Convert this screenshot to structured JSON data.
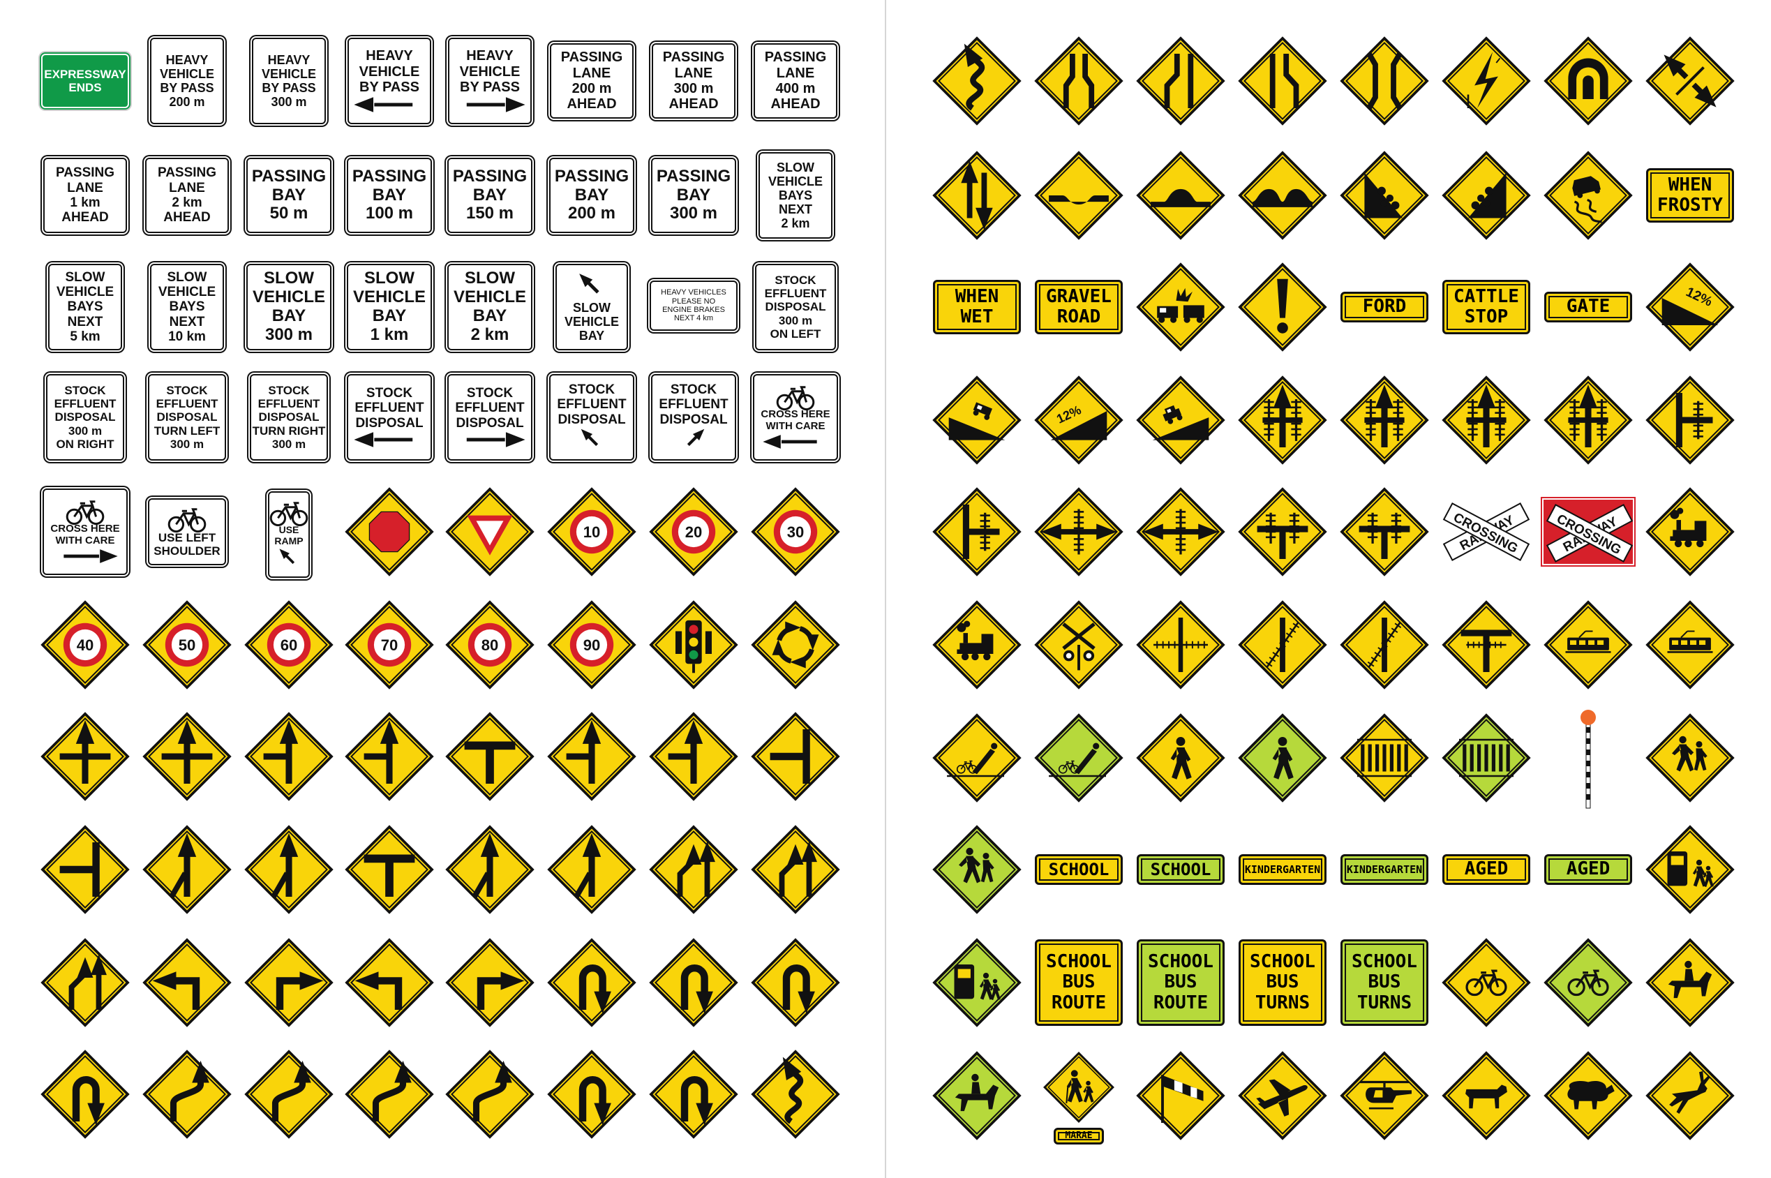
{
  "colors": {
    "yellow": "#f9d40a",
    "lime": "#b6d93b",
    "red": "#d6202a",
    "green": "#109a48",
    "black": "#111111",
    "white": "#ffffff"
  },
  "text_signs": [
    {
      "lines": [
        "EXPRESSWAY",
        "ENDS"
      ],
      "style": "green"
    },
    {
      "lines": [
        "HEAVY",
        "VEHICLE",
        "BY PASS",
        "200 m"
      ],
      "style": "white"
    },
    {
      "lines": [
        "HEAVY",
        "VEHICLE",
        "BY PASS",
        "300 m"
      ],
      "style": "white"
    },
    {
      "lines": [
        "HEAVY",
        "VEHICLE",
        "BY PASS"
      ],
      "style": "white",
      "icon": "arrow-left-icon"
    },
    {
      "lines": [
        "HEAVY",
        "VEHICLE",
        "BY PASS"
      ],
      "style": "white",
      "icon": "arrow-right-icon"
    },
    {
      "lines": [
        "PASSING",
        "LANE",
        "200 m",
        "AHEAD"
      ],
      "style": "white"
    },
    {
      "lines": [
        "PASSING",
        "LANE",
        "300 m",
        "AHEAD"
      ],
      "style": "white"
    },
    {
      "lines": [
        "PASSING",
        "LANE",
        "400 m",
        "AHEAD"
      ],
      "style": "white"
    },
    {
      "lines": [
        "PASSING",
        "LANE",
        "1 km",
        "AHEAD"
      ],
      "style": "white"
    },
    {
      "lines": [
        "PASSING",
        "LANE",
        "2 km",
        "AHEAD"
      ],
      "style": "white"
    },
    {
      "lines": [
        "PASSING",
        "BAY",
        "50 m"
      ],
      "style": "white"
    },
    {
      "lines": [
        "PASSING",
        "BAY",
        "100 m"
      ],
      "style": "white"
    },
    {
      "lines": [
        "PASSING",
        "BAY",
        "150 m"
      ],
      "style": "white"
    },
    {
      "lines": [
        "PASSING",
        "BAY",
        "200 m"
      ],
      "style": "white"
    },
    {
      "lines": [
        "PASSING",
        "BAY",
        "300 m"
      ],
      "style": "white"
    },
    {
      "lines": [
        "SLOW",
        "VEHICLE",
        "BAYS",
        "NEXT",
        "2 km"
      ],
      "style": "white"
    },
    {
      "lines": [
        "SLOW",
        "VEHICLE",
        "BAYS",
        "NEXT",
        "5 km"
      ],
      "style": "white"
    },
    {
      "lines": [
        "SLOW",
        "VEHICLE",
        "BAYS",
        "NEXT",
        "10 km"
      ],
      "style": "white"
    },
    {
      "lines": [
        "SLOW",
        "VEHICLE",
        "BAY",
        "300 m"
      ],
      "style": "white"
    },
    {
      "lines": [
        "SLOW",
        "VEHICLE",
        "BAY",
        "1 km"
      ],
      "style": "white"
    },
    {
      "lines": [
        "SLOW",
        "VEHICLE",
        "BAY",
        "2 km"
      ],
      "style": "white"
    },
    {
      "lines": [
        "SLOW",
        "VEHICLE",
        "BAY"
      ],
      "style": "white",
      "icon": "arrow-up-left-icon"
    },
    {
      "lines": [
        "HEAVY VEHICLES",
        "PLEASE NO",
        "ENGINE BRAKES",
        "NEXT 4 km"
      ],
      "style": "white"
    },
    {
      "lines": [
        "STOCK",
        "EFFLUENT",
        "DISPOSAL",
        "300 m",
        "ON LEFT"
      ],
      "style": "white"
    },
    {
      "lines": [
        "STOCK",
        "EFFLUENT",
        "DISPOSAL",
        "300 m",
        "ON RIGHT"
      ],
      "style": "white"
    },
    {
      "lines": [
        "STOCK",
        "EFFLUENT",
        "DISPOSAL",
        "TURN LEFT",
        "300 m"
      ],
      "style": "white"
    },
    {
      "lines": [
        "STOCK",
        "EFFLUENT",
        "DISPOSAL",
        "TURN RIGHT",
        "300 m"
      ],
      "style": "white"
    },
    {
      "lines": [
        "STOCK",
        "EFFLUENT",
        "DISPOSAL"
      ],
      "style": "white",
      "icon": "arrow-left-icon"
    },
    {
      "lines": [
        "STOCK",
        "EFFLUENT",
        "DISPOSAL"
      ],
      "style": "white",
      "icon": "arrow-right-icon"
    },
    {
      "lines": [
        "STOCK",
        "EFFLUENT",
        "DISPOSAL"
      ],
      "style": "white",
      "icon": "arrow-up-left-icon"
    },
    {
      "lines": [
        "STOCK",
        "EFFLUENT",
        "DISPOSAL"
      ],
      "style": "white",
      "icon": "arrow-up-right-icon"
    },
    {
      "lines": [
        "CROSS HERE",
        "WITH CARE"
      ],
      "style": "white",
      "icon": "bicycle-icon",
      "icon2": "arrow-left-icon"
    },
    {
      "lines": [
        "CROSS HERE",
        "WITH CARE"
      ],
      "style": "white",
      "icon": "bicycle-icon",
      "icon2": "arrow-right-icon"
    },
    {
      "lines": [
        "USE LEFT",
        "SHOULDER"
      ],
      "style": "white",
      "icon": "bicycle-icon"
    },
    {
      "lines": [
        "USE",
        "RAMP"
      ],
      "style": "white",
      "icon": "bicycle-icon",
      "icon2": "arrow-up-left-icon"
    }
  ],
  "speed_signs": [
    "10",
    "20",
    "30",
    "40",
    "50",
    "60",
    "70",
    "80",
    "90"
  ],
  "word_signs": [
    {
      "lines": [
        "WHEN",
        "FROSTY"
      ],
      "style": "yellow"
    },
    {
      "lines": [
        "WHEN",
        "WET"
      ],
      "style": "yellow"
    },
    {
      "lines": [
        "GRAVEL",
        "ROAD"
      ],
      "style": "yellow"
    },
    {
      "lines": [
        "FORD"
      ],
      "style": "yellow"
    },
    {
      "lines": [
        "CATTLE",
        "STOP"
      ],
      "style": "yellow"
    },
    {
      "lines": [
        "GATE"
      ],
      "style": "yellow"
    },
    {
      "lines": [
        "SCHOOL"
      ],
      "style": "yellow"
    },
    {
      "lines": [
        "SCHOOL"
      ],
      "style": "lime"
    },
    {
      "lines": [
        "KINDERGARTEN"
      ],
      "style": "yellow"
    },
    {
      "lines": [
        "KINDERGARTEN"
      ],
      "style": "lime"
    },
    {
      "lines": [
        "AGED"
      ],
      "style": "yellow"
    },
    {
      "lines": [
        "AGED"
      ],
      "style": "lime"
    },
    {
      "lines": [
        "SCHOOL",
        "BUS",
        "ROUTE"
      ],
      "style": "yellow"
    },
    {
      "lines": [
        "SCHOOL",
        "BUS",
        "ROUTE"
      ],
      "style": "lime"
    },
    {
      "lines": [
        "SCHOOL",
        "BUS",
        "TURNS"
      ],
      "style": "yellow"
    },
    {
      "lines": [
        "SCHOOL",
        "BUS",
        "TURNS"
      ],
      "style": "lime"
    },
    {
      "lines": [
        "MARAE"
      ],
      "style": "plate"
    }
  ],
  "grade_labels": [
    "12%",
    "12%",
    "12%"
  ],
  "crossbuck_labels": [
    "RAILWAY",
    "CROSSING",
    "RAILWAY",
    "CROSSING"
  ],
  "diamond_icons": [
    "winding-road-icon",
    "road-narrows-both-icon",
    "road-narrows-left-icon",
    "road-narrows-right-icon",
    "narrow-bridge-icon",
    "lightning-icon",
    "tunnel-icon",
    "divided-road-ends-icon",
    "two-way-traffic-icon",
    "dip-icon",
    "hump-icon",
    "bumps-icon",
    "falling-rocks-left-icon",
    "falling-rocks-right-icon",
    "slippery-road-icon",
    "crash-ahead-icon",
    "exclamation-icon",
    "steep-descent-icon",
    "steep-descent-truck-icon",
    "steep-ascent-icon",
    "steep-ascent-car-icon",
    "rail-crossing-side-road-icon",
    "rail-crossing-side-road-icon",
    "rail-crossing-side-road-icon",
    "rail-crossing-side-road-icon",
    "rail-crossing-t-icon",
    "rail-crossing-t-left-icon",
    "rail-crossing-crossroads-icon",
    "rail-crossing-crossroads-icon",
    "rail-crossing-t-icon",
    "rail-crossing-t-icon",
    "steam-train-icon",
    "steam-train-icon",
    "rail-crossing-signals-icon",
    "rail-track-cross-icon",
    "rail-track-skew-icon",
    "rail-track-skew-icon",
    "rail-track-t-icon",
    "tram-icon",
    "tram-icon",
    "cyclist-fall-icon",
    "cyclist-fall-icon",
    "pedestrian-icon",
    "pedestrian-icon",
    "zebra-crossing-icon",
    "zebra-crossing-icon",
    "children-crossing-icon",
    "children-crossing-icon",
    "school-patrol-icon",
    "school-patrol-icon",
    "bicycle-icon",
    "bicycle-icon",
    "horse-rider-icon",
    "horse-rider-icon",
    "elderly-pedestrians-icon",
    "windsock-icon",
    "aircraft-icon",
    "helicopter-icon",
    "cattle-icon",
    "sheep-icon",
    "deer-icon",
    "stop-ahead-icon",
    "give-way-ahead-icon",
    "traffic-signals-icon",
    "roundabout-icon",
    "crossroads-icon",
    "side-road-icon",
    "t-junction-icon",
    "staggered-junction-icon",
    "merge-icon",
    "lane-ends-icon",
    "curve-left-icon",
    "curve-right-icon",
    "hairpin-icon",
    "reverse-curve-icon"
  ]
}
